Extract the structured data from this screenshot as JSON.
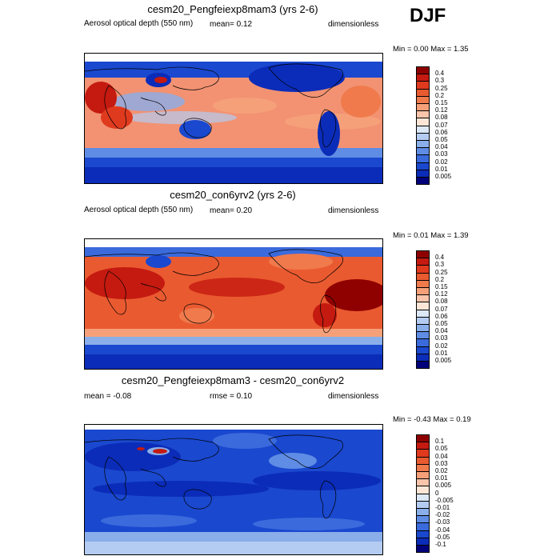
{
  "season": "DJF",
  "panels": [
    {
      "title": "cesm20_Pengfeiexp8mam3 (yrs 2-6)",
      "left_label": "Aerosol optical depth (550 nm)",
      "center_label": "mean=  0.12",
      "right_label": "dimensionless",
      "minmax": "Min =  0.00 Max =  1.35",
      "field_level": 0.12
    },
    {
      "title": "cesm20_con6yrv2 (yrs 2-6)",
      "left_label": "Aerosol optical depth (550 nm)",
      "center_label": "mean=  0.20",
      "right_label": "dimensionless",
      "minmax": "Min =  0.01 Max =  1.39",
      "field_level": 0.2
    },
    {
      "title": "cesm20_Pengfeiexp8mam3 - cesm20_con6yrv2",
      "left_label": "mean =  -0.08",
      "center_label": "rmse =  0.10",
      "right_label": "dimensionless",
      "minmax": "Min =  -0.43 Max =  0.19",
      "field_level": -0.08
    }
  ],
  "legend_abs": {
    "labels": [
      "0.4",
      "0.3",
      "0.25",
      "0.2",
      "0.15",
      "0.12",
      "0.08",
      "0.07",
      "0.06",
      "0.05",
      "0.04",
      "0.03",
      "0.02",
      "0.01",
      "0.005"
    ],
    "colors": [
      "#8f0000",
      "#c41a10",
      "#e03a1e",
      "#ea5a30",
      "#f07a4c",
      "#f6a07a",
      "#fbc5ab",
      "#fde6d6",
      "#dde8f7",
      "#b4ccf1",
      "#8aaeea",
      "#5f8ce4",
      "#3a6adc",
      "#1a48cf",
      "#0b2cb8",
      "#00007a"
    ]
  },
  "legend_diff": {
    "labels": [
      "0.1",
      "0.05",
      "0.04",
      "0.03",
      "0.02",
      "0.01",
      "0.005",
      "0",
      "-0.005",
      "-0.01",
      "-0.02",
      "-0.03",
      "-0.04",
      "-0.05",
      "-0.1"
    ],
    "colors": [
      "#8f0000",
      "#c41a10",
      "#e03a1e",
      "#ea5a30",
      "#f07a4c",
      "#f6a07a",
      "#fbc5ab",
      "#fde6d6",
      "#dde8f7",
      "#b4ccf1",
      "#8aaeea",
      "#5f8ce4",
      "#3a6adc",
      "#1a48cf",
      "#0b2cb8",
      "#00007a"
    ]
  }
}
